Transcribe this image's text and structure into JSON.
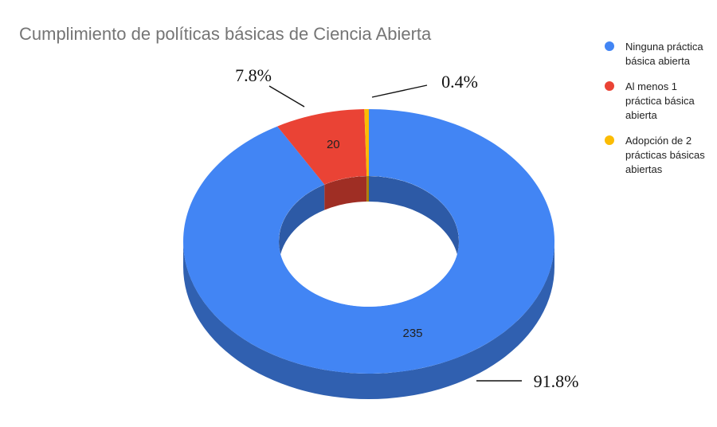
{
  "chart_data": {
    "type": "pie",
    "title": "Cumplimiento de políticas básicas de Ciencia Abierta",
    "categories": [
      "Ninguna práctica básica abierta",
      "Al menos 1 práctica básica abierta",
      "Adopción de 2 prácticas básicas abiertas"
    ],
    "values": [
      235,
      20,
      1
    ],
    "value_labels": [
      "235",
      "20",
      ""
    ],
    "percent_labels": [
      "91.8%",
      "7.8%",
      "0.4%"
    ],
    "colors": [
      "#4285f4",
      "#ea4335",
      "#fbbc04"
    ],
    "donut": true,
    "three_d": true,
    "legend_position": "right"
  },
  "legend": {
    "items": [
      {
        "label": "Ninguna práctica básica abierta",
        "color": "#4285f4"
      },
      {
        "label": "Al menos 1 práctica básica abierta",
        "color": "#ea4335"
      },
      {
        "label": "Adopción de 2 prácticas básicas abiertas",
        "color": "#fbbc04"
      }
    ]
  }
}
